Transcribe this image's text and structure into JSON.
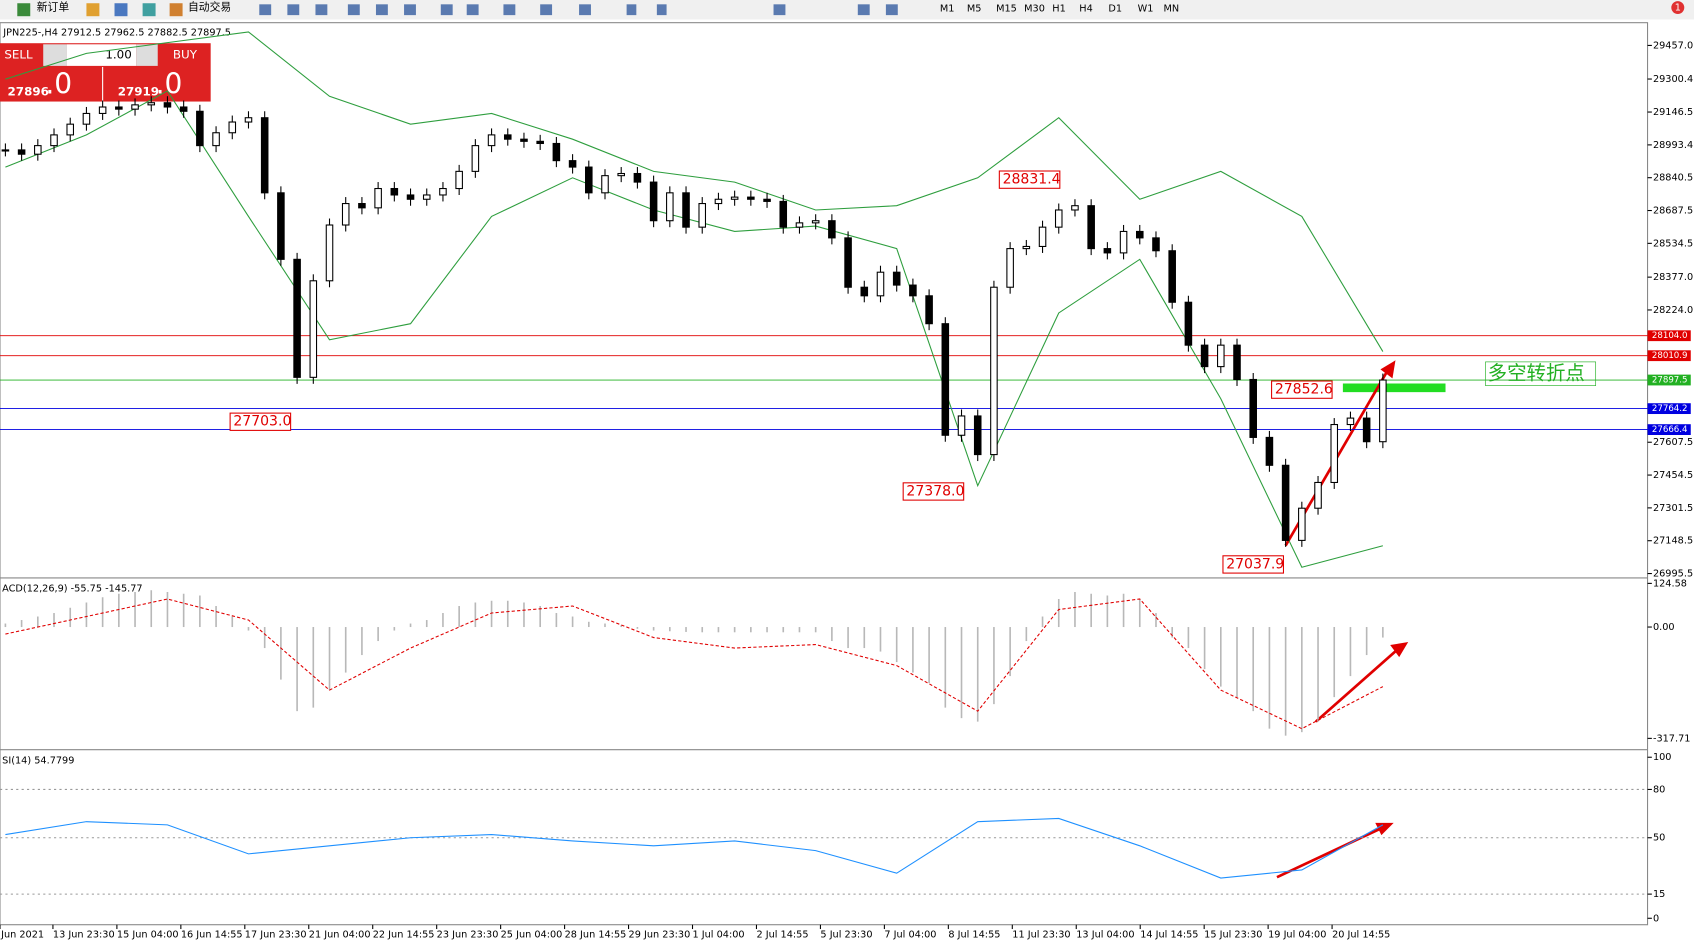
{
  "toolbar": {
    "new_order": "新订单",
    "auto_trading": "自动交易",
    "timeframes": [
      "M1",
      "M5",
      "M15",
      "M30",
      "H1",
      "H4",
      "D1",
      "W1",
      "MN"
    ],
    "badge": "1"
  },
  "trade_panel": {
    "sell": "SELL",
    "buy": "BUY",
    "volume": "1.00",
    "sell_price": "27896",
    "sell_fraction": ".0",
    "buy_price": "27919",
    "buy_fraction": ".0"
  },
  "chart_data": {
    "type": "candlestick",
    "symbol_header": "JPN225-,H4  27912.5 27962.5 27882.5 27897.5",
    "close": [
      28970,
      28950,
      28990,
      29040,
      29090,
      29140,
      29170,
      29160,
      29180,
      29190,
      29170,
      29150,
      28990,
      29050,
      29100,
      29120,
      28770,
      28460,
      27910,
      28360,
      28620,
      28720,
      28700,
      28790,
      28760,
      28740,
      28760,
      28790,
      28870,
      28990,
      29040,
      29020,
      29010,
      29000,
      28920,
      28890,
      28770,
      28850,
      28860,
      28820,
      28640,
      28770,
      28610,
      28720,
      28740,
      28750,
      28740,
      28730,
      28610,
      28630,
      28640,
      28560,
      28330,
      28290,
      28400,
      28340,
      28290,
      28160,
      27640,
      27730,
      27550,
      28330,
      28510,
      28520,
      28610,
      28690,
      28710,
      28510,
      28490,
      28590,
      28560,
      28500,
      28260,
      28060,
      27960,
      28060,
      27900,
      27630,
      27500,
      27150,
      27300,
      27420,
      27690,
      27720,
      27610,
      27897.5
    ],
    "upper_band": [
      29300,
      29420,
      29470,
      29520,
      29220,
      29090,
      29140,
      29020,
      28870,
      28820,
      28690,
      28710,
      28840,
      29120,
      28740,
      28870,
      28660,
      28030
    ],
    "lower_band": [
      28890,
      29040,
      29245,
      28660,
      28085,
      28160,
      28660,
      28840,
      28690,
      28590,
      28615,
      28510,
      27405,
      28210,
      28460,
      27810,
      27025,
      27125
    ],
    "band_color": "#2e9e3e",
    "candle_color": "#000000",
    "ylim": [
      26980,
      29563
    ],
    "yticks": [
      {
        "value": 29457,
        "label": "29457.0"
      },
      29300.4,
      29146.5,
      28993.4,
      28840.5,
      28687.5,
      28534.5,
      {
        "value": 28377,
        "label": "28377.0"
      },
      {
        "value": 28224,
        "label": "28224.0"
      },
      27607.5,
      27454.5,
      27301.5,
      27148.5,
      26995.5
    ],
    "price_lines": [
      {
        "value": 28104,
        "label": "28104.0",
        "color": "#e00000"
      },
      {
        "value": 28010.9,
        "label": "28010.9",
        "color": "#e00000"
      },
      {
        "value": 27897.5,
        "label": "27897.5",
        "color": "#22b022"
      },
      {
        "value": 27764.2,
        "label": "27764.2",
        "color": "#0000e0"
      },
      {
        "value": 27666.4,
        "label": "27666.4",
        "color": "#0000e0"
      }
    ],
    "annotations": [
      {
        "value": 28831.4,
        "label": "28831.4"
      },
      {
        "value": 27703,
        "label": "27703.0"
      },
      {
        "value": 27378,
        "label": "27378.0"
      },
      {
        "value": 27037.9,
        "label": "27037.9"
      },
      {
        "value": 27852.6,
        "label": "27852.6"
      }
    ],
    "note": "多空转折点",
    "x_labels": [
      "Jun 2021",
      "13 Jun 23:30",
      "15 Jun 04:00",
      "16 Jun 14:55",
      "17 Jun 23:30",
      "21 Jun 04:00",
      "22 Jun 14:55",
      "23 Jun 23:30",
      "25 Jun 04:00",
      "28 Jun 14:55",
      "29 Jun 23:30",
      "1 Jul 04:00",
      "2 Jul 14:55",
      "5 Jul 23:30",
      "7 Jul 04:00",
      "8 Jul 14:55",
      "11 Jul 23:30",
      "13 Jul 04:00",
      "14 Jul 14:55",
      "15 Jul 23:30",
      "19 Jul 04:00",
      "20 Jul 14:55"
    ],
    "macd": {
      "title": "ACD(12,26,9) -55.75 -145.77",
      "ylim": [
        -347,
        137
      ],
      "yticks": [
        124.58,
        {
          "value": 0,
          "label": "0.00"
        },
        -317.71
      ],
      "histogram": [
        10,
        20,
        30,
        40,
        55,
        70,
        85,
        95,
        100,
        105,
        100,
        95,
        90,
        60,
        30,
        -10,
        -60,
        -150,
        -240,
        -230,
        -180,
        -130,
        -80,
        -40,
        -10,
        10,
        20,
        40,
        60,
        70,
        75,
        75,
        70,
        60,
        40,
        30,
        15,
        10,
        5,
        -5,
        -10,
        -12,
        -14,
        -15,
        -15,
        -15,
        -15,
        -15,
        -15,
        -15,
        -15,
        -40,
        -60,
        -60,
        -70,
        -100,
        -130,
        -160,
        -230,
        -260,
        -270,
        -220,
        -140,
        -40,
        30,
        80,
        100,
        95,
        90,
        95,
        80,
        40,
        -30,
        -60,
        -120,
        -170,
        -200,
        -240,
        -290,
        -310,
        -300,
        -270,
        -200,
        -140,
        -80,
        -30
      ],
      "signal": [
        -20,
        30,
        80,
        20,
        -180,
        -60,
        40,
        60,
        -30,
        -60,
        -50,
        -110,
        -240,
        50,
        80,
        -180,
        -290,
        -170
      ],
      "histogram_color": "#b8b8b8",
      "signal_color": "#e00000"
    },
    "rsi": {
      "title": "SI(14) 54.7799",
      "ylim": [
        -4,
        104
      ],
      "yticks": [
        100,
        80,
        50,
        15,
        0
      ],
      "levels": [
        80,
        50,
        15
      ],
      "values": [
        52,
        60,
        58,
        40,
        45,
        50,
        52,
        48,
        45,
        48,
        42,
        28,
        60,
        62,
        45,
        25,
        30,
        58
      ],
      "color": "#1e90ff"
    }
  }
}
